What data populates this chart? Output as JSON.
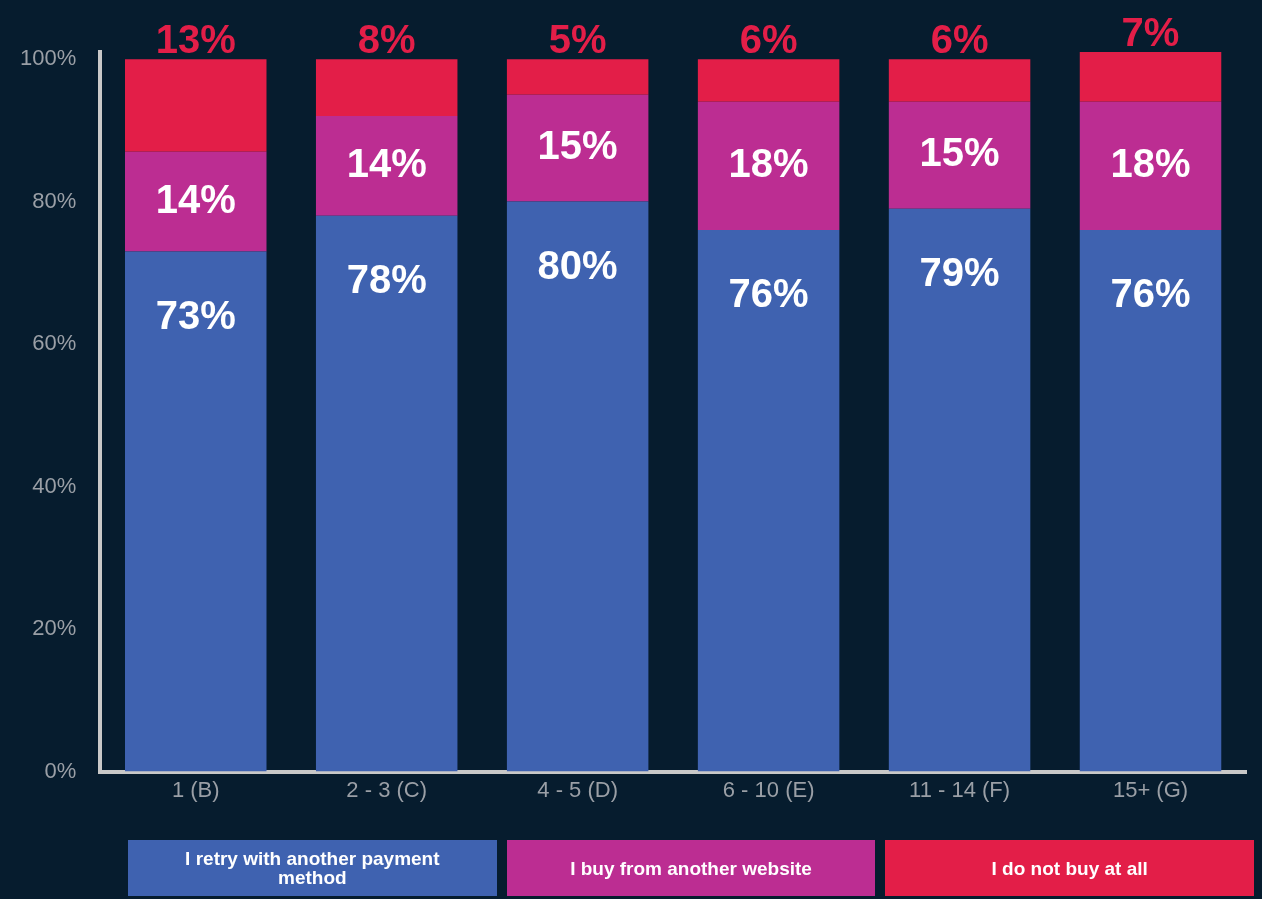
{
  "chart_data": {
    "type": "bar",
    "stacked": true,
    "categories": [
      "1 (B)",
      "2 - 3 (C)",
      "4 - 5 (D)",
      "6 - 10 (E)",
      "11 - 14 (F)",
      "15+ (G)"
    ],
    "series": [
      {
        "name": "I retry with another payment method",
        "color": "#3f62b0",
        "values": [
          73,
          78,
          80,
          76,
          79,
          76
        ],
        "value_labels": [
          "73%",
          "78%",
          "80%",
          "76%",
          "79%",
          "76%"
        ]
      },
      {
        "name": "I buy from another website",
        "color": "#bc2d92",
        "values": [
          14,
          14,
          15,
          18,
          15,
          18
        ],
        "value_labels": [
          "14%",
          "14%",
          "15%",
          "18%",
          "15%",
          "18%"
        ]
      },
      {
        "name": "I do not buy at all",
        "color": "#e31e48",
        "values": [
          13,
          8,
          5,
          6,
          6,
          7
        ],
        "value_labels": [
          "13%",
          "8%",
          "5%",
          "6%",
          "6%",
          "7%"
        ]
      }
    ],
    "ylim": [
      0,
      101
    ],
    "yticks": [
      {
        "value": 0,
        "label": "0%"
      },
      {
        "value": 20,
        "label": "20%"
      },
      {
        "value": 40,
        "label": "40%"
      },
      {
        "value": 60,
        "label": "60%"
      },
      {
        "value": 80,
        "label": "80%"
      },
      {
        "value": 100,
        "label": "100%"
      }
    ],
    "grid": false,
    "legend": "bottom"
  }
}
